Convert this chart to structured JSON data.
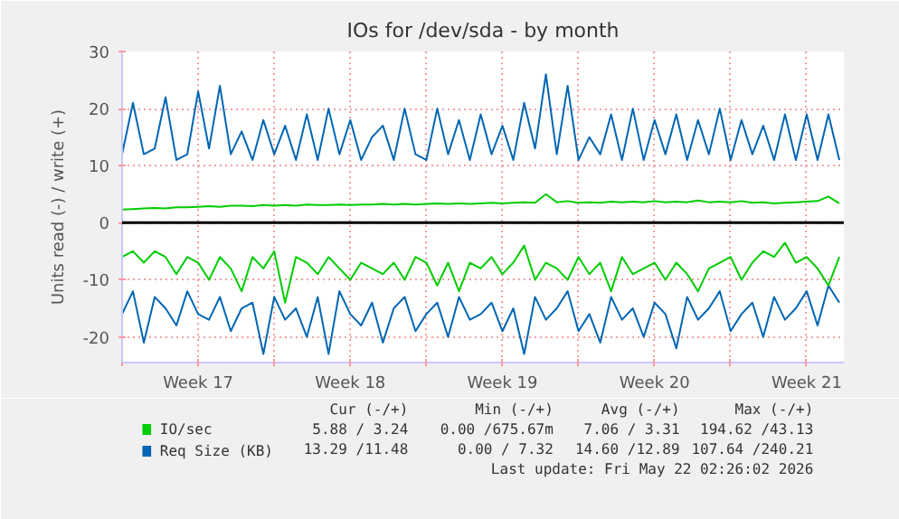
{
  "chart_data": {
    "type": "line",
    "title": "IOs for /dev/sda - by month",
    "ylabel": "Units read (-) / write (+)",
    "x": [
      "2026-04-20T00:00",
      "2026-04-20T12:00",
      "2026-04-21T00:00",
      "2026-04-21T12:00",
      "2026-04-22T00:00",
      "2026-04-22T12:00",
      "2026-04-23T00:00",
      "2026-04-23T12:00",
      "2026-04-24T00:00",
      "2026-04-24T12:00",
      "2026-04-25T00:00",
      "2026-04-25T12:00",
      "2026-04-26T00:00",
      "2026-04-26T12:00",
      "2026-04-27T00:00",
      "2026-04-27T12:00",
      "2026-04-28T00:00",
      "2026-04-28T12:00",
      "2026-04-29T00:00",
      "2026-04-29T12:00",
      "2026-04-30T00:00",
      "2026-04-30T12:00",
      "2026-05-01T00:00",
      "2026-05-01T12:00",
      "2026-05-02T00:00",
      "2026-05-02T12:00",
      "2026-05-03T00:00",
      "2026-05-03T12:00",
      "2026-05-04T00:00",
      "2026-05-04T12:00",
      "2026-05-05T00:00",
      "2026-05-05T12:00",
      "2026-05-06T00:00",
      "2026-05-06T12:00",
      "2026-05-07T00:00",
      "2026-05-07T12:00",
      "2026-05-08T00:00",
      "2026-05-08T12:00",
      "2026-05-09T00:00",
      "2026-05-09T12:00",
      "2026-05-10T00:00",
      "2026-05-10T12:00",
      "2026-05-11T00:00",
      "2026-05-11T12:00",
      "2026-05-12T00:00",
      "2026-05-12T12:00",
      "2026-05-13T00:00",
      "2026-05-13T12:00",
      "2026-05-14T00:00",
      "2026-05-14T12:00",
      "2026-05-15T00:00",
      "2026-05-15T12:00",
      "2026-05-16T00:00",
      "2026-05-16T12:00",
      "2026-05-17T00:00",
      "2026-05-17T12:00",
      "2026-05-18T00:00",
      "2026-05-18T12:00",
      "2026-05-19T00:00",
      "2026-05-19T12:00",
      "2026-05-20T00:00",
      "2026-05-20T12:00",
      "2026-05-21T00:00",
      "2026-05-21T12:00",
      "2026-05-22T00:00",
      "2026-05-22T12:00",
      "2026-05-23T00:00"
    ],
    "series": [
      {
        "name": "Req Size (KB)",
        "color": "#0066b3",
        "values": [
          12,
          21,
          12,
          13,
          22,
          11,
          12,
          23,
          13,
          24,
          12,
          16,
          11,
          18,
          12,
          17,
          11,
          19,
          11,
          20,
          12,
          18,
          11,
          15,
          17,
          11,
          20,
          12,
          11,
          20,
          12,
          18,
          11,
          19,
          12,
          17,
          11,
          21,
          13,
          26,
          12,
          24,
          11,
          15,
          12,
          19,
          11,
          20,
          11,
          18,
          12,
          19,
          11,
          18,
          12,
          20,
          11,
          18,
          12,
          17,
          11,
          19,
          11,
          19,
          11,
          19,
          11
        ]
      },
      {
        "color": "#0066b3",
        "values": [
          -16,
          -12,
          -21,
          -13,
          -15,
          -18,
          -12,
          -16,
          -17,
          -13,
          -19,
          -15,
          -14,
          -23,
          -13,
          -17,
          -15,
          -20,
          -13,
          -23,
          -12,
          -16,
          -18,
          -14,
          -21,
          -15,
          -13,
          -19,
          -16,
          -14,
          -20,
          -13,
          -17,
          -16,
          -14,
          -19,
          -15,
          -23,
          -13,
          -17,
          -15,
          -12,
          -19,
          -16,
          -21,
          -13,
          -17,
          -15,
          -20,
          -14,
          -16,
          -22,
          -13,
          -17,
          -15,
          -12,
          -19,
          -16,
          -14,
          -20,
          -13,
          -17,
          -15,
          -12,
          -18,
          -11,
          -14
        ]
      },
      {
        "name": "IO/sec",
        "color": "#00cc00",
        "values": [
          2.3,
          2.4,
          2.5,
          2.6,
          2.5,
          2.7,
          2.7,
          2.8,
          2.9,
          2.8,
          3.0,
          3.0,
          2.9,
          3.1,
          3.0,
          3.1,
          3.0,
          3.2,
          3.1,
          3.1,
          3.2,
          3.1,
          3.2,
          3.2,
          3.3,
          3.2,
          3.3,
          3.2,
          3.3,
          3.4,
          3.3,
          3.4,
          3.3,
          3.4,
          3.5,
          3.4,
          3.5,
          3.6,
          3.5,
          5.0,
          3.6,
          3.8,
          3.5,
          3.6,
          3.5,
          3.7,
          3.6,
          3.7,
          3.6,
          3.8,
          3.6,
          3.7,
          3.6,
          3.9,
          3.6,
          3.7,
          3.6,
          3.8,
          3.5,
          3.6,
          3.4,
          3.5,
          3.6,
          3.7,
          3.8,
          4.6,
          3.4
        ]
      },
      {
        "color": "#00cc00",
        "values": [
          -6,
          -5,
          -7,
          -5,
          -6,
          -9,
          -6,
          -7,
          -10,
          -6,
          -8,
          -12,
          -6,
          -8,
          -5,
          -14,
          -6,
          -7,
          -9,
          -6,
          -8,
          -10,
          -7,
          -8,
          -9,
          -7,
          -10,
          -6,
          -7,
          -11,
          -7,
          -12,
          -7,
          -8,
          -6,
          -9,
          -7,
          -4,
          -10,
          -7,
          -8,
          -10,
          -6,
          -9,
          -7,
          -12,
          -6,
          -9,
          -8,
          -7,
          -10,
          -7,
          -9,
          -12,
          -8,
          -7,
          -6,
          -10,
          -7,
          -5,
          -6,
          -3.5,
          -7,
          -6,
          -8,
          -11,
          -6
        ]
      }
    ],
    "xlim": [
      "2026-04-20T00:00",
      "2026-05-23T05:00"
    ],
    "xticks": [
      {
        "value": "2026-04-20",
        "label": null
      },
      {
        "value": "2026-04-23T12:00",
        "label": "Week 17"
      },
      {
        "value": "2026-04-27",
        "label": null
      },
      {
        "value": "2026-04-30T12:00",
        "label": "Week 18"
      },
      {
        "value": "2026-05-04",
        "label": null
      },
      {
        "value": "2026-05-07T12:00",
        "label": "Week 19"
      },
      {
        "value": "2026-05-11",
        "label": null
      },
      {
        "value": "2026-05-14T12:00",
        "label": "Week 20"
      },
      {
        "value": "2026-05-18",
        "label": null
      },
      {
        "value": "2026-05-21T12:00",
        "label": "Week 21"
      }
    ],
    "ylim": [
      -24.5,
      30
    ],
    "yticks": [
      -20,
      -10,
      0,
      10,
      20,
      30
    ],
    "ref_lines": [
      {
        "axis": "y",
        "value": 0,
        "color": "#000000"
      }
    ],
    "grid": true,
    "legend": "bottom",
    "annotations": [
      "Cur (-/+)",
      "Min (-/+)",
      "Avg (-/+)",
      "Max (-/+)",
      "5.88 / 3.24",
      "0.00 /675.67m",
      "7.06 / 3.31",
      "194.62 /43.13",
      "13.29 /11.48",
      "0.00 / 7.32",
      "14.60 /12.89",
      "107.64 /240.21",
      "Last update: Fri May 22 02:26:02 2026"
    ]
  }
}
